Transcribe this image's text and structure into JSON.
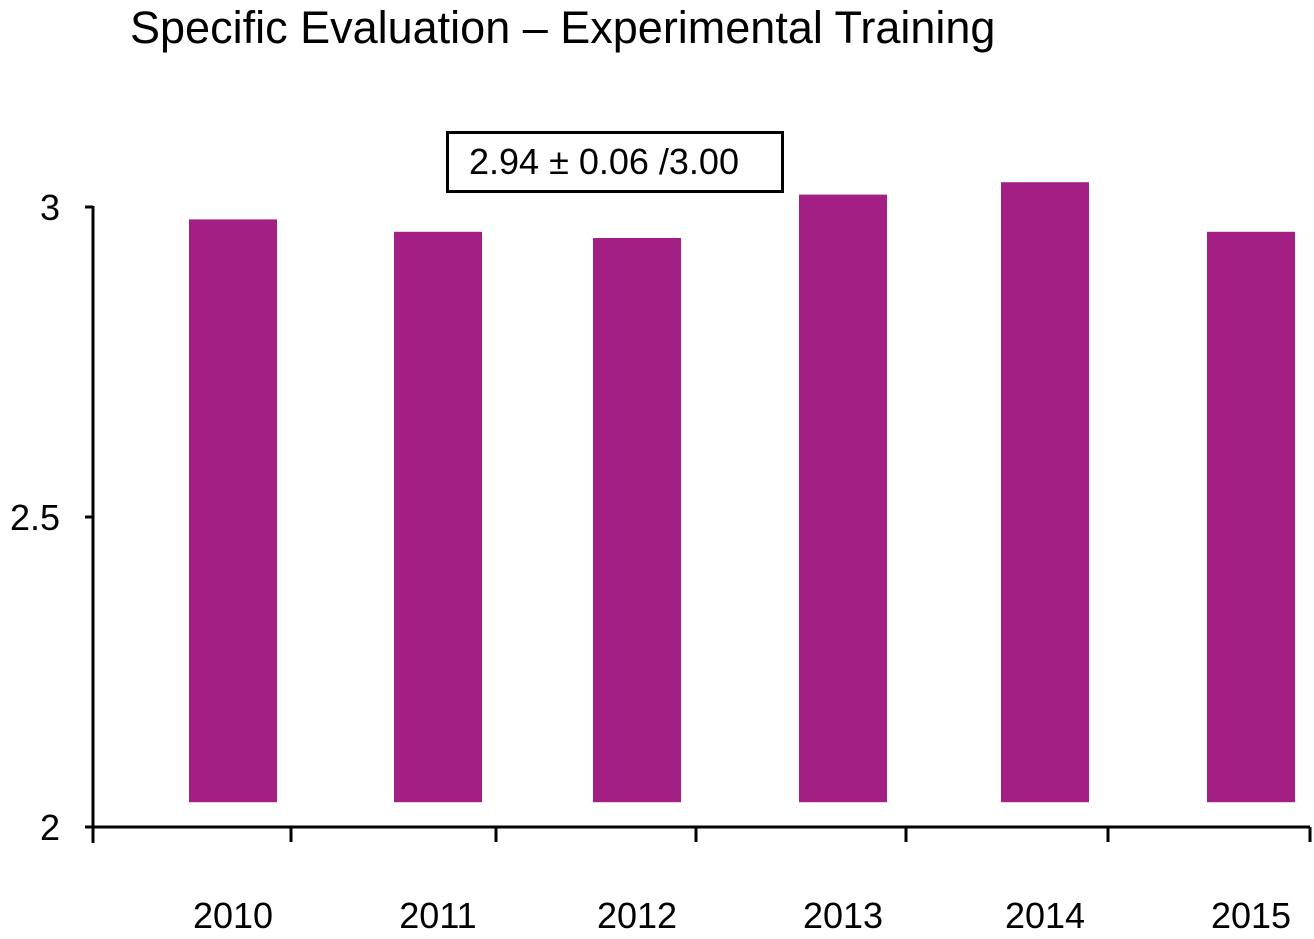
{
  "chart_data": {
    "type": "bar",
    "title": "Specific Evaluation – Experimental Training",
    "annotation": "2.94 ± 0.06 /3.00",
    "categories": [
      "2010",
      "2011",
      "2012",
      "2013",
      "2014",
      "2015"
    ],
    "values": [
      2.98,
      2.96,
      2.95,
      3.02,
      3.04,
      2.96
    ],
    "baseline": 2.04,
    "ylim": [
      2,
      3
    ],
    "yticks": [
      "2",
      "2.5",
      "3"
    ],
    "xlabel": "",
    "ylabel": "",
    "grid": false,
    "bar_color": "#a31f84"
  }
}
